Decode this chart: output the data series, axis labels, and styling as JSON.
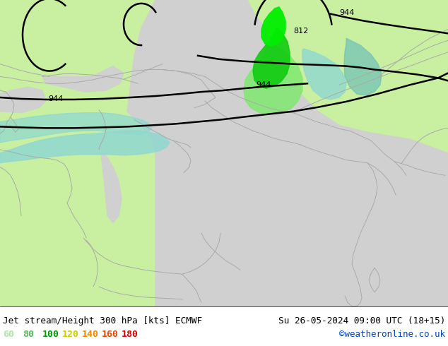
{
  "title_left": "Jet stream/Height 300 hPa [kts] ECMWF",
  "title_right": "Su 26-05-2024 09:00 UTC (18+15)",
  "credit": "©weatheronline.co.uk",
  "legend_values": [
    "60",
    "80",
    "100",
    "120",
    "140",
    "160",
    "180"
  ],
  "legend_colors": [
    "#aae8aa",
    "#55bb55",
    "#009900",
    "#cccc00",
    "#ee8800",
    "#ee4400",
    "#dd0000"
  ],
  "land_color": "#c8f0a0",
  "sea_color": "#d0d0d0",
  "jet_teal": "#90d8d0",
  "jet_teal2": "#70c0b8",
  "jet_green_light": "#80e870",
  "jet_green_dark": "#10cc10",
  "jet_green_bright": "#00ee00",
  "contour_color": "#000000",
  "border_color": "#aaaaaa",
  "title_fontsize": 9.5,
  "credit_color": "#0044bb",
  "bottom_bar_color": "#ffffff",
  "figsize": [
    6.34,
    4.9
  ],
  "dpi": 100
}
